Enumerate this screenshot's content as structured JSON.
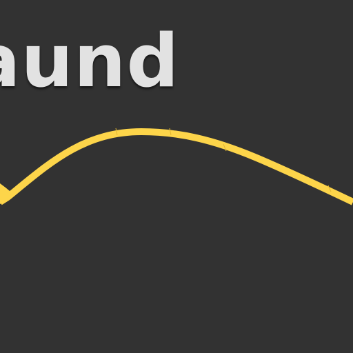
{
  "title": "aund",
  "colors": {
    "background": "#323232",
    "title_text": "#e2e2e2",
    "curve": "#fdd54a",
    "curve_shade": "#e2b733"
  },
  "curve": {
    "icon": "wave-path"
  }
}
